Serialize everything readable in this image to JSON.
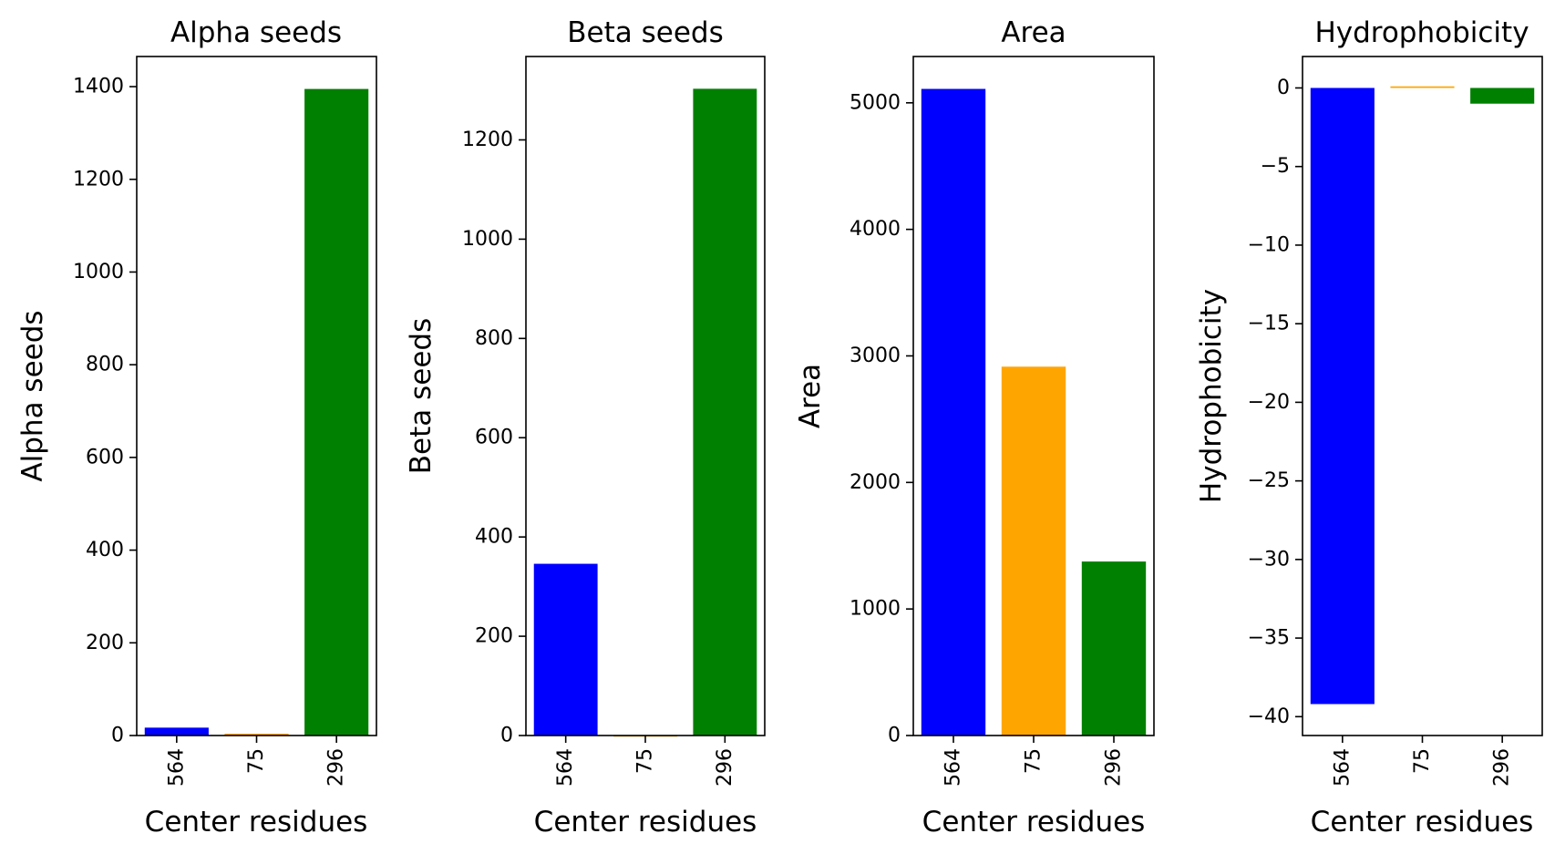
{
  "chart_data": [
    {
      "type": "bar",
      "title": "Alpha seeds",
      "xlabel": "Center residues",
      "ylabel": "Alpha seeds",
      "categories": [
        "564",
        "75",
        "296"
      ],
      "values": [
        17,
        4,
        1395
      ],
      "colors": [
        "#0000ff",
        "#ffa500",
        "#008000"
      ],
      "ylim": [
        0,
        1465
      ],
      "yticks": [
        0,
        200,
        400,
        600,
        800,
        1000,
        1200,
        1400
      ],
      "ytick_labels": [
        "0",
        "200",
        "400",
        "600",
        "800",
        "1000",
        "1200",
        "1400"
      ],
      "grid": false
    },
    {
      "type": "bar",
      "title": "Beta seeds",
      "xlabel": "Center residues",
      "ylabel": "Beta seeds",
      "categories": [
        "564",
        "75",
        "296"
      ],
      "values": [
        346,
        0,
        1303
      ],
      "colors": [
        "#0000ff",
        "#ffa500",
        "#008000"
      ],
      "ylim": [
        0,
        1368
      ],
      "yticks": [
        0,
        200,
        400,
        600,
        800,
        1000,
        1200
      ],
      "ytick_labels": [
        "0",
        "200",
        "400",
        "600",
        "800",
        "1000",
        "1200"
      ],
      "grid": false
    },
    {
      "type": "bar",
      "title": "Area",
      "xlabel": "Center residues",
      "ylabel": "Area",
      "categories": [
        "564",
        "75",
        "296"
      ],
      "values": [
        5110,
        2915,
        1375
      ],
      "colors": [
        "#0000ff",
        "#ffa500",
        "#008000"
      ],
      "ylim": [
        0,
        5366
      ],
      "yticks": [
        0,
        1000,
        2000,
        3000,
        4000,
        5000
      ],
      "ytick_labels": [
        "0",
        "1000",
        "2000",
        "3000",
        "4000",
        "5000"
      ],
      "grid": false
    },
    {
      "type": "bar",
      "title": "Hydrophobicity",
      "xlabel": "Center residues",
      "ylabel": "Hydrophobicity",
      "categories": [
        "564",
        "75",
        "296"
      ],
      "values": [
        -39.2,
        0.1,
        -1.0
      ],
      "colors": [
        "#0000ff",
        "#ffa500",
        "#008000"
      ],
      "ylim": [
        -41.2,
        2.0
      ],
      "yticks": [
        0,
        -5,
        -10,
        -15,
        -20,
        -25,
        -30,
        -35,
        -40
      ],
      "ytick_labels": [
        "0",
        "−5",
        "−10",
        "−15",
        "−20",
        "−25",
        "−30",
        "−35",
        "−40"
      ],
      "grid": false
    }
  ]
}
